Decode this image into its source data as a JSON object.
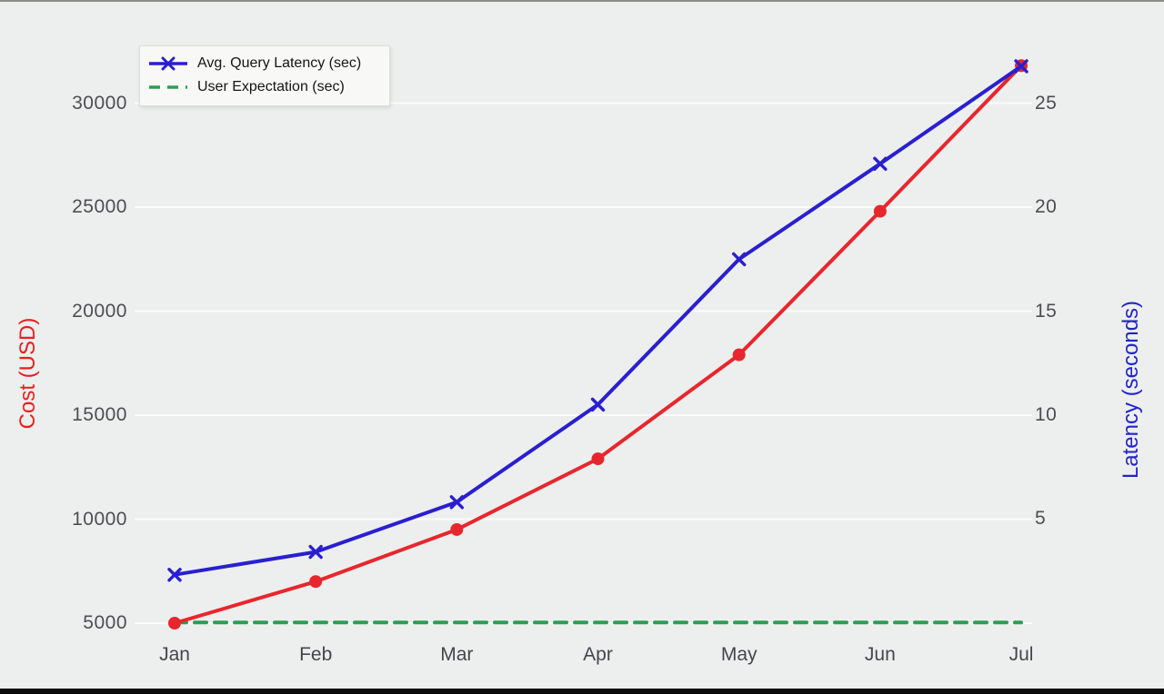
{
  "figure": {
    "background": "#ecefed",
    "legend": {
      "items": [
        {
          "label": "Avg. Query Latency (sec)",
          "marker": "solid-line-with-x",
          "color": "#2a1fd0"
        },
        {
          "label": "User Expectation (sec)",
          "marker": "dashed-line",
          "color": "#2e9c55"
        }
      ]
    },
    "axes": {
      "left": {
        "title": "Cost (USD)",
        "title_color": "#ee1c1c",
        "tick_color": "#4c4f52",
        "ticks": [
          30000,
          25000,
          20000,
          15000,
          10000,
          5000
        ]
      },
      "right": {
        "title": "Latency (seconds)",
        "title_color": "#2323cd",
        "tick_color": "#4c4f52",
        "ticks": [
          25,
          20,
          15,
          10,
          5
        ]
      },
      "x": {
        "ticks": [
          "Jan",
          "Feb",
          "Mar",
          "Apr",
          "May",
          "Jun",
          "Jul"
        ]
      }
    }
  },
  "chart_data": {
    "type": "line",
    "x": [
      "Jan",
      "Feb",
      "Mar",
      "Apr",
      "May",
      "Jun",
      "Jul"
    ],
    "left_axis": {
      "label": "Cost (USD)",
      "tick_range": [
        5000,
        30000
      ],
      "grid": true
    },
    "right_axis": {
      "label": "Latency (seconds)",
      "tick_range": [
        5,
        25
      ]
    },
    "legend_position": "upper-left",
    "series": [
      {
        "name": "Cost (USD)",
        "axis": "left",
        "color": "#e8262d",
        "marker": "circle",
        "line_style": "solid",
        "values": [
          5000,
          7000,
          9500,
          12900,
          17900,
          24800,
          31800
        ]
      },
      {
        "name": "Avg. Query Latency (sec)",
        "axis": "right",
        "color": "#2a1fd0",
        "marker": "x",
        "line_style": "solid",
        "values": [
          2.3,
          3.4,
          5.8,
          10.5,
          17.5,
          22.1,
          26.8
        ]
      },
      {
        "name": "User Expectation (sec)",
        "axis": "right",
        "color": "#2e9c55",
        "marker": "none",
        "line_style": "dashed",
        "values": [
          0,
          0,
          0,
          0,
          0,
          0,
          0
        ]
      }
    ]
  }
}
